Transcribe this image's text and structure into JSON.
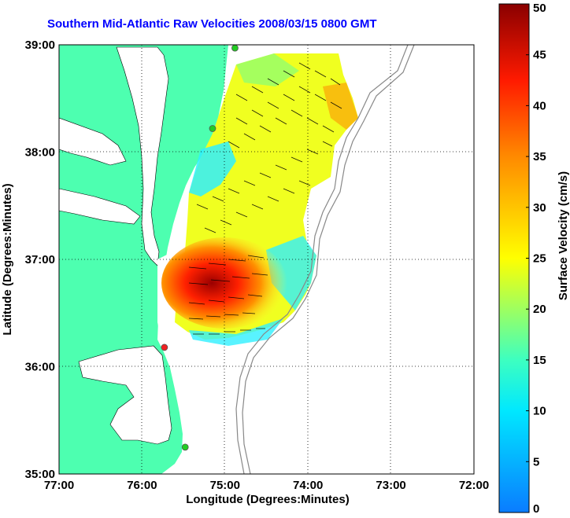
{
  "chart_data": {
    "type": "heatmap",
    "title": "Southern Mid-Atlantic Raw Velocities 2008/03/15 0800 GMT",
    "xlabel": "Longitude (Degrees:Minutes)",
    "ylabel": "Latitude (Degrees:Minutes)",
    "xlim": [
      -77,
      -72
    ],
    "ylim": [
      35,
      39
    ],
    "x_ticks": [
      "77:00",
      "76:00",
      "75:00",
      "74:00",
      "73:00",
      "72:00"
    ],
    "y_ticks": [
      "35:00",
      "36:00",
      "37:00",
      "38:00",
      "39:00"
    ],
    "grid": true,
    "colorbar": {
      "label": "Surface Velocity (cm/s)",
      "min": 0,
      "max": 50,
      "ticks": [
        "0",
        "5",
        "10",
        "15",
        "20",
        "25",
        "30",
        "35",
        "40",
        "45",
        "50"
      ]
    },
    "stations": [
      {
        "lon": -74.88,
        "lat": 38.97,
        "color": "#22cc22"
      },
      {
        "lon": -75.15,
        "lat": 38.22,
        "color": "#22cc22"
      },
      {
        "lon": -75.73,
        "lat": 36.18,
        "color": "#ee2222"
      },
      {
        "lon": -75.48,
        "lat": 35.25,
        "color": "#22cc22"
      }
    ],
    "velocity_fields": [
      {
        "center": [
          -74.0,
          38.3
        ],
        "speed": 25,
        "direction": "southeast"
      },
      {
        "center": [
          -75.3,
          37.8
        ],
        "speed": 12,
        "direction": "southeast"
      },
      {
        "center": [
          -75.1,
          36.85
        ],
        "speed": 46,
        "direction": "east"
      },
      {
        "center": [
          -75.0,
          36.35
        ],
        "speed": 22,
        "direction": "east"
      }
    ]
  }
}
